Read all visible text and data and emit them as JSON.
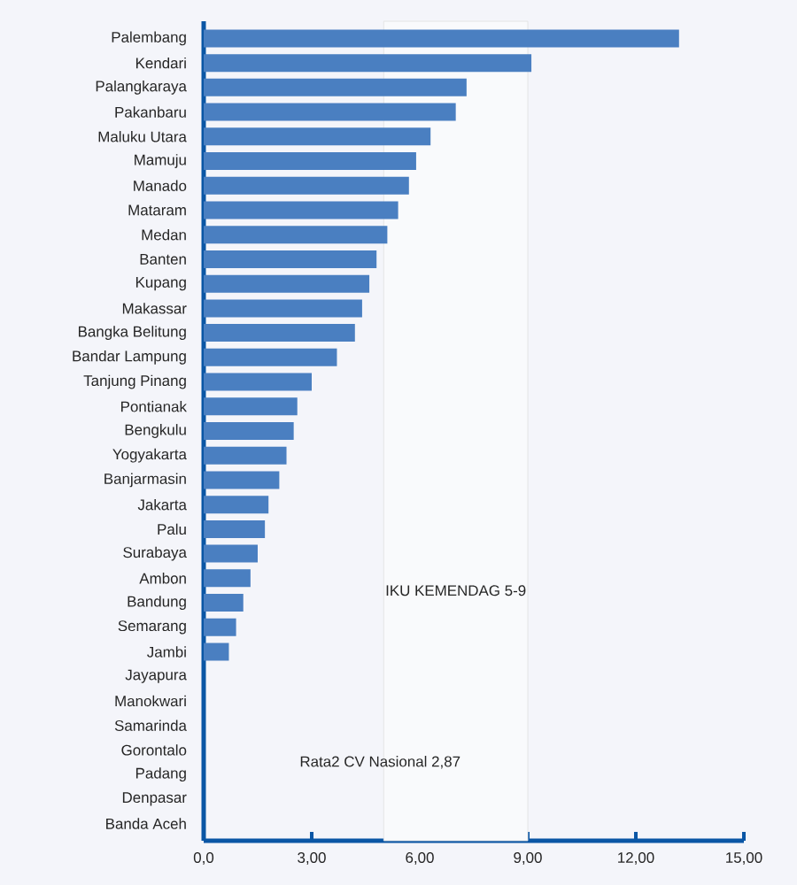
{
  "chart_data": {
    "type": "bar",
    "orientation": "horizontal",
    "color": "#4a7fc1",
    "categories": [
      "Palembang",
      "Kendari",
      "Palangkaraya",
      "Pakanbaru",
      "Maluku Utara",
      "Mamuju",
      "Manado",
      "Mataram",
      "Medan",
      "Banten",
      "Kupang",
      "Makassar",
      "Bangka Belitung",
      "Bandar Lampung",
      "Tanjung Pinang",
      "Pontianak",
      "Bengkulu",
      "Yogyakarta",
      "Banjarmasin",
      "Jakarta",
      "Palu",
      "Surabaya",
      "Ambon",
      "Bandung",
      "Semarang",
      "Jambi",
      "Jayapura",
      "Manokwari",
      "Samarinda",
      "Gorontalo",
      "Padang",
      "Denpasar",
      "Banda Aceh"
    ],
    "values": [
      13.2,
      9.1,
      7.3,
      7.0,
      6.3,
      5.9,
      5.7,
      5.4,
      5.1,
      4.8,
      4.6,
      4.4,
      4.2,
      3.7,
      3.0,
      2.6,
      2.5,
      2.3,
      2.1,
      1.8,
      1.7,
      1.5,
      1.3,
      1.1,
      0.9,
      0.7,
      null,
      null,
      null,
      null,
      null,
      null,
      null
    ],
    "xlim": [
      0,
      15
    ],
    "xticks": [
      {
        "value": 0,
        "label": "0,0"
      },
      {
        "value": 3,
        "label": "3,00"
      },
      {
        "value": 6,
        "label": "6,00"
      },
      {
        "value": 9,
        "label": "9,00"
      },
      {
        "value": 12,
        "label": "12,00"
      },
      {
        "value": 15,
        "label": "15,00"
      }
    ],
    "bands": [
      {
        "axis": "x",
        "from": 5,
        "to": 9,
        "label": "IKU KEMENDAG 5-9",
        "color": "#f9fafc"
      }
    ],
    "annotations": [
      "Rata2 CV Nasional 2,87"
    ]
  }
}
